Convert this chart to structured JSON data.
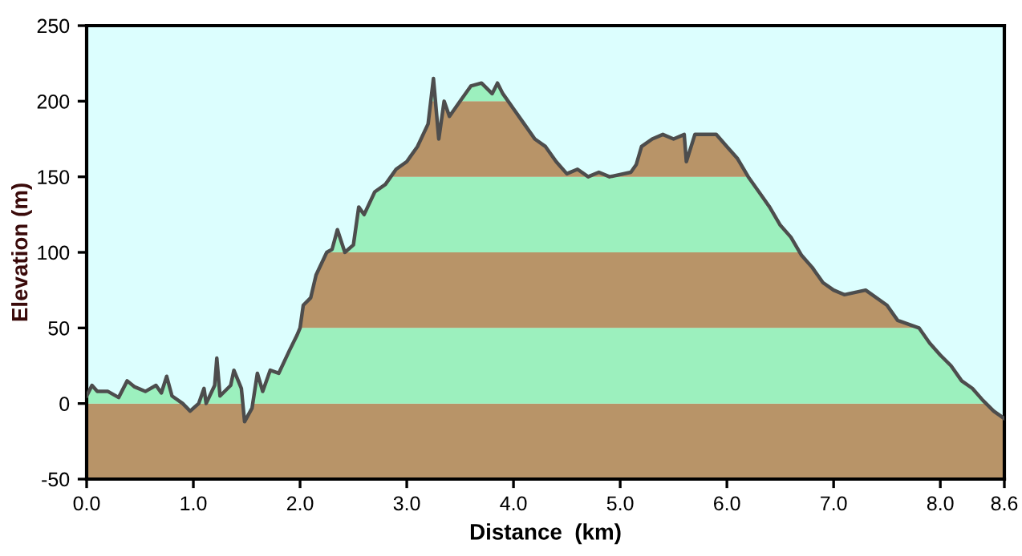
{
  "chart_data": {
    "type": "line",
    "xlabel": "Distance  (km)",
    "ylabel": "Elevation (m)",
    "x": [
      0.0,
      0.05,
      0.1,
      0.2,
      0.3,
      0.38,
      0.45,
      0.55,
      0.65,
      0.7,
      0.75,
      0.8,
      0.9,
      0.97,
      1.05,
      1.1,
      1.12,
      1.2,
      1.22,
      1.25,
      1.35,
      1.38,
      1.45,
      1.48,
      1.55,
      1.6,
      1.65,
      1.72,
      1.8,
      1.9,
      1.97,
      2.0,
      2.03,
      2.1,
      2.15,
      2.25,
      2.3,
      2.35,
      2.42,
      2.5,
      2.55,
      2.6,
      2.7,
      2.8,
      2.9,
      3.0,
      3.1,
      3.2,
      3.25,
      3.3,
      3.35,
      3.4,
      3.5,
      3.6,
      3.7,
      3.8,
      3.85,
      3.9,
      4.0,
      4.1,
      4.2,
      4.3,
      4.4,
      4.5,
      4.6,
      4.7,
      4.8,
      4.9,
      5.1,
      5.15,
      5.2,
      5.3,
      5.4,
      5.5,
      5.6,
      5.62,
      5.7,
      5.85,
      5.9,
      6.0,
      6.1,
      6.2,
      6.3,
      6.4,
      6.5,
      6.6,
      6.7,
      6.8,
      6.9,
      7.0,
      7.1,
      7.3,
      7.5,
      7.6,
      7.8,
      7.9,
      8.0,
      8.1,
      8.2,
      8.3,
      8.4,
      8.5,
      8.6
    ],
    "series": [
      {
        "color": "#4d4d4d",
        "values": [
          5,
          12,
          8,
          8,
          4,
          15,
          11,
          8,
          12,
          7,
          18,
          5,
          0,
          -5,
          0,
          10,
          0,
          12,
          30,
          5,
          12,
          22,
          10,
          -12,
          -3,
          20,
          8,
          22,
          20,
          35,
          45,
          50,
          65,
          70,
          85,
          100,
          102,
          115,
          100,
          105,
          130,
          125,
          140,
          145,
          155,
          160,
          170,
          185,
          215,
          175,
          200,
          190,
          200,
          210,
          212,
          205,
          212,
          205,
          195,
          185,
          175,
          170,
          160,
          152,
          155,
          150,
          153,
          150,
          153,
          158,
          170,
          175,
          178,
          175,
          178,
          160,
          178,
          178,
          178,
          170,
          162,
          150,
          140,
          130,
          118,
          110,
          98,
          90,
          80,
          75,
          72,
          75,
          65,
          55,
          50,
          40,
          32,
          25,
          15,
          10,
          2,
          -5,
          -10
        ]
      }
    ],
    "bands": [
      {
        "axis": "y",
        "from": -50,
        "to": 0,
        "color": "#b89468"
      },
      {
        "axis": "y",
        "from": 0,
        "to": 50,
        "color": "#9cf0be"
      },
      {
        "axis": "y",
        "from": 50,
        "to": 100,
        "color": "#b89468"
      },
      {
        "axis": "y",
        "from": 100,
        "to": 150,
        "color": "#9cf0be"
      },
      {
        "axis": "y",
        "from": 150,
        "to": 200,
        "color": "#b89468"
      },
      {
        "axis": "y",
        "from": 200,
        "to": 250,
        "color": "#9cf0be"
      }
    ],
    "xlim": [
      0,
      8.6
    ],
    "ylim": [
      -50,
      250
    ],
    "xticks": [
      {
        "value": 0,
        "label": "0.0"
      },
      {
        "value": 1,
        "label": "1.0"
      },
      {
        "value": 2,
        "label": "2.0"
      },
      {
        "value": 3,
        "label": "3.0"
      },
      {
        "value": 4,
        "label": "4.0"
      },
      {
        "value": 5,
        "label": "5.0"
      },
      {
        "value": 6,
        "label": "6.0"
      },
      {
        "value": 7,
        "label": "7.0"
      },
      {
        "value": 8,
        "label": "8.0"
      },
      8.6
    ],
    "yticks": [
      -50,
      0,
      50,
      100,
      150,
      200,
      250
    ],
    "grid": false,
    "legend": false
  }
}
